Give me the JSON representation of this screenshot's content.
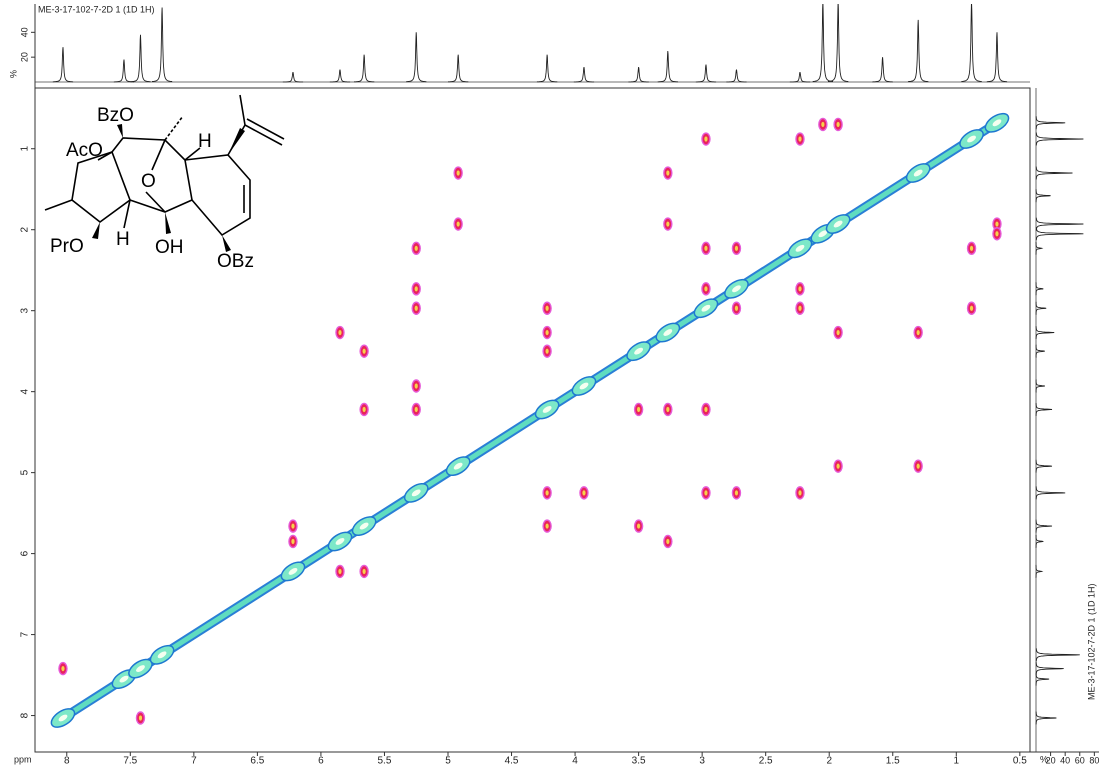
{
  "chart_data": {
    "type": "cosy",
    "title": "ME-3-17-102-7-2D 1 (1D 1H)",
    "xlabel": "ppm",
    "xlim": [
      8.25,
      0.42
    ],
    "xticks": [
      8,
      7.5,
      7,
      6.5,
      6,
      5.5,
      5,
      4.5,
      4,
      3.5,
      3,
      2.5,
      2,
      1.5,
      1,
      0.5
    ],
    "ylim": [
      0.25,
      8.45
    ],
    "yticks": [
      1,
      2,
      3,
      4,
      5,
      6,
      7,
      8
    ],
    "diagonal_peaks": [
      8.03,
      7.55,
      7.42,
      7.25,
      6.22,
      5.85,
      5.66,
      5.25,
      4.92,
      4.22,
      3.93,
      3.5,
      3.27,
      2.97,
      2.73,
      2.23,
      2.05,
      1.93,
      1.3,
      0.88,
      0.68
    ],
    "cross_peaks": {
      "x": [
        2.23,
        0.88,
        2.05,
        1.93,
        0.68,
        0.68,
        0.88,
        2.97,
        5.25,
        2.23,
        5.25,
        2.73,
        5.25,
        2.97,
        5.25,
        3.93,
        5.25,
        4.22,
        5.85,
        3.27,
        5.66,
        3.5,
        5.66,
        4.22,
        4.92,
        1.3,
        4.92,
        1.93,
        3.27,
        1.3,
        3.27,
        1.93,
        4.22,
        2.97,
        4.22,
        3.27,
        4.22,
        3.5,
        2.97,
        2.23,
        2.73,
        2.23,
        2.97,
        2.73,
        6.22,
        5.66,
        6.22,
        5.85,
        8.03,
        7.42
      ],
      "y": [
        0.88,
        2.23,
        0.7,
        0.7,
        1.93,
        2.05,
        2.97,
        0.88,
        2.23,
        5.25,
        2.73,
        5.25,
        2.97,
        5.25,
        3.93,
        5.25,
        4.22,
        5.25,
        3.27,
        5.85,
        3.5,
        5.66,
        4.22,
        5.66,
        1.3,
        4.92,
        1.93,
        4.92,
        1.3,
        3.27,
        1.93,
        3.27,
        2.97,
        4.22,
        3.27,
        4.22,
        3.5,
        4.22,
        2.23,
        2.97,
        2.23,
        2.73,
        2.73,
        2.97,
        5.66,
        6.22,
        5.85,
        6.22,
        7.42,
        8.03
      ]
    },
    "projection": {
      "ppm": [
        8.03,
        7.55,
        7.42,
        7.25,
        6.22,
        5.85,
        5.66,
        5.25,
        4.92,
        4.22,
        3.93,
        3.5,
        3.27,
        2.97,
        2.73,
        2.23,
        2.05,
        1.93,
        1.58,
        1.3,
        0.88,
        0.68
      ],
      "heights": [
        28,
        18,
        38,
        60,
        8,
        10,
        22,
        40,
        22,
        22,
        12,
        12,
        25,
        14,
        10,
        8,
        65,
        65,
        20,
        50,
        65,
        40
      ]
    },
    "top_axis": {
      "label": "%",
      "ylim": [
        0,
        62
      ],
      "yticks": [
        20,
        40
      ]
    },
    "right_axis": {
      "label": "%",
      "xlim": [
        0,
        85
      ],
      "xticks": [
        20,
        40,
        60,
        80
      ]
    },
    "annotations": [
      "BzO",
      "AcO",
      "O",
      "H",
      "PrO",
      "H",
      "OH",
      "OBz"
    ]
  }
}
